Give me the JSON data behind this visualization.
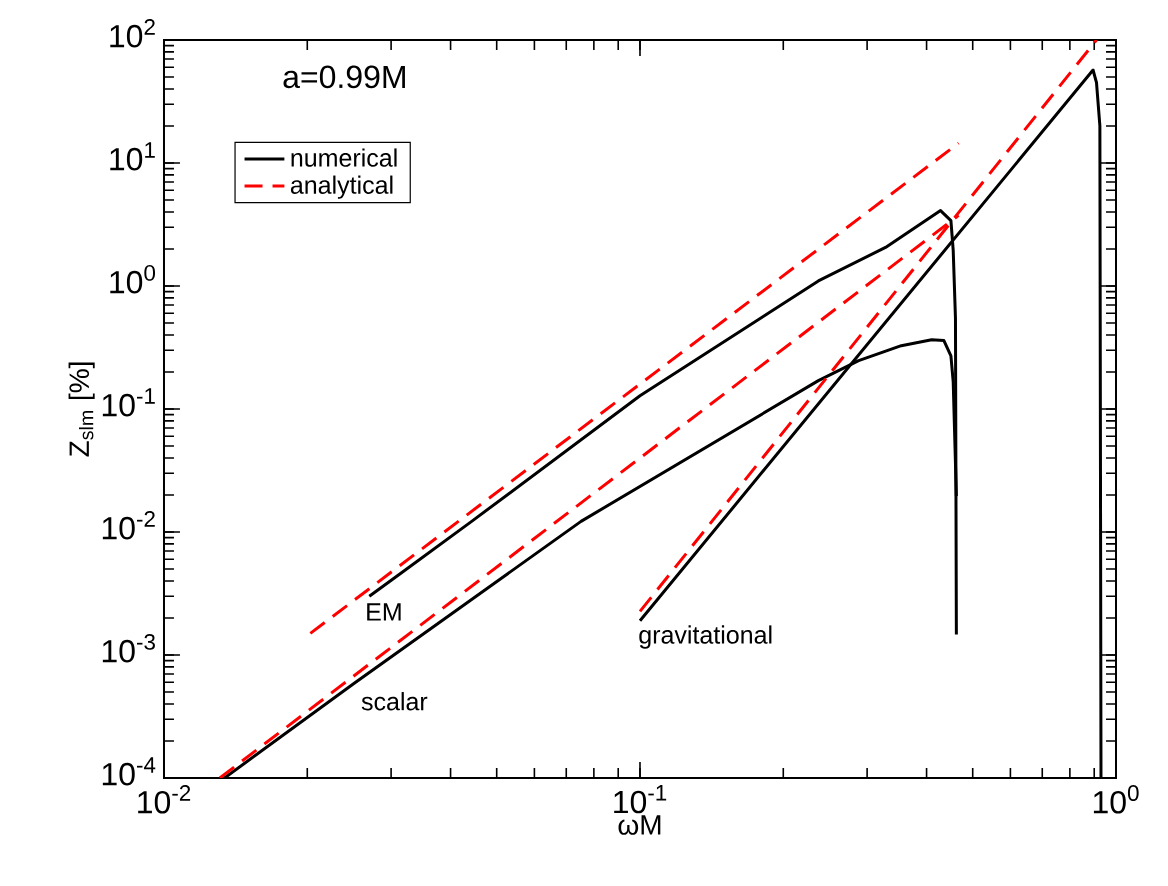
{
  "chart_data": {
    "type": "line",
    "xlabel": "ωM",
    "ylabel": "Z$_{slm}$ [%]",
    "log": "xy",
    "xlim": [
      0.01,
      1
    ],
    "ylim": [
      0.0001,
      100
    ],
    "xticks": [
      {
        "value": 0.01,
        "label": "10$^{-2}$"
      },
      {
        "value": 0.1,
        "label": "10$^{-1}$"
      },
      {
        "value": 1,
        "label": "10$^{0}$"
      }
    ],
    "yticks": [
      {
        "value": 0.0001,
        "label": "10$^{-4}$"
      },
      {
        "value": 0.001,
        "label": "10$^{-3}$"
      },
      {
        "value": 0.01,
        "label": "10$^{-2}$"
      },
      {
        "value": 0.1,
        "label": "10$^{-1}$"
      },
      {
        "value": 1,
        "label": "10$^{0}$"
      },
      {
        "value": 10,
        "label": "10$^{1}$"
      },
      {
        "value": 100,
        "label": "10$^{2}$"
      }
    ],
    "grid": false,
    "legend": "top left",
    "marker": "none",
    "series": [
      {
        "name": "numerical",
        "color": "#000000",
        "line_style": "solid",
        "x": [
          0.0134,
          0.0251,
          0.0752,
          0.237,
          0.288,
          0.354,
          0.41,
          0.435,
          0.45,
          0.455,
          0.462
        ],
        "values": [
          0.0001,
          0.00059,
          0.0122,
          0.17,
          0.247,
          0.327,
          0.366,
          0.36,
          0.27,
          0.166,
          0.0196
        ]
      },
      {
        "name": "analytical",
        "color": "#ff0000",
        "line_style": "dashed",
        "x": [
          0.0131,
          0.467
        ],
        "values": [
          0.0001,
          3.75
        ]
      },
      {
        "color": "#000000",
        "line_style": "solid",
        "x": [
          0.027,
          0.0314,
          0.0443,
          0.1,
          0.237,
          0.328,
          0.428,
          0.45,
          0.455,
          0.46,
          0.462
        ],
        "values": [
          0.003,
          0.0046,
          0.0122,
          0.128,
          1.1,
          2.06,
          4.1,
          3.4,
          1.95,
          0.55,
          0.00147
        ]
      },
      {
        "color": "#000000",
        "line_style": "solid",
        "x": [
          0.1,
          0.895,
          0.91,
          0.925,
          0.93
        ],
        "values": [
          0.0019,
          57,
          45,
          20,
          0.0001
        ]
      },
      {
        "color": "#ff0000",
        "line_style": "dashed",
        "x": [
          0.0203,
          0.467
        ],
        "values": [
          0.0015,
          14.5
        ]
      },
      {
        "color": "#ff0000",
        "line_style": "dashed",
        "x": [
          0.1,
          0.91
        ],
        "values": [
          0.00226,
          100
        ]
      }
    ],
    "annotations": [
      "a=0.99M",
      "EM",
      "scalar",
      "gravitational"
    ]
  }
}
